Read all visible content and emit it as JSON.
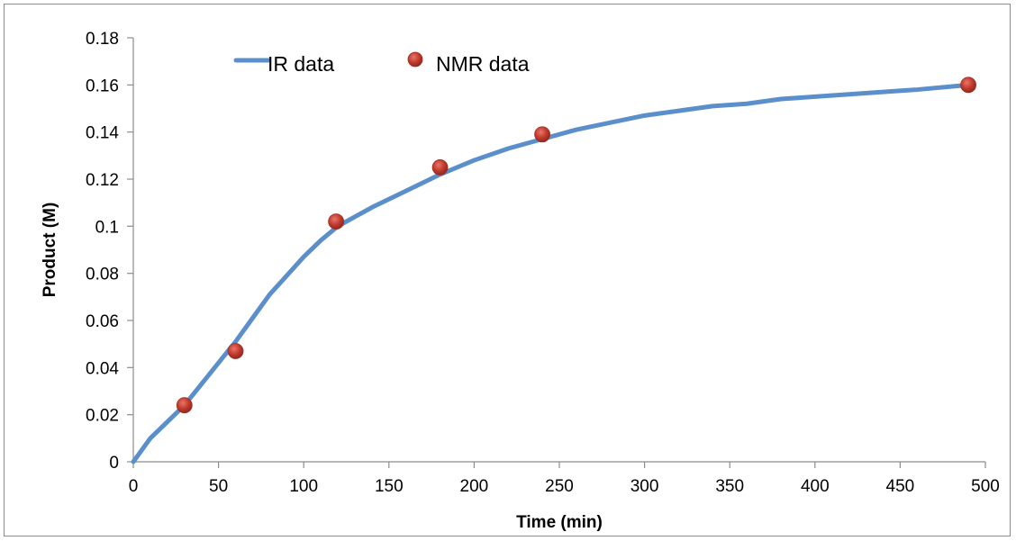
{
  "chart_data": {
    "type": "scatter",
    "title": "",
    "xlabel": "Time (min)",
    "ylabel": "Product (M)",
    "xlim": [
      0,
      500
    ],
    "ylim": [
      0,
      0.18
    ],
    "xticks": [
      "0",
      "50",
      "100",
      "150",
      "200",
      "250",
      "300",
      "350",
      "400",
      "450",
      "500"
    ],
    "yticks": [
      "0",
      "0.02",
      "0.04",
      "0.06",
      "0.08",
      "0.1",
      "0.12",
      "0.14",
      "0.16",
      "0.18"
    ],
    "grid": false,
    "legend_position": "top-left",
    "series": [
      {
        "name": "IR data",
        "type": "line",
        "color": "#5b8fcb",
        "x": [
          0,
          10,
          20,
          30,
          40,
          50,
          60,
          70,
          80,
          90,
          100,
          110,
          120,
          140,
          160,
          180,
          200,
          220,
          240,
          260,
          280,
          300,
          320,
          340,
          360,
          380,
          400,
          420,
          440,
          460,
          490
        ],
        "y": [
          0,
          0.01,
          0.017,
          0.024,
          0.033,
          0.042,
          0.051,
          0.061,
          0.071,
          0.079,
          0.087,
          0.094,
          0.1,
          0.108,
          0.115,
          0.122,
          0.128,
          0.133,
          0.137,
          0.141,
          0.144,
          0.147,
          0.149,
          0.151,
          0.152,
          0.154,
          0.155,
          0.156,
          0.157,
          0.158,
          0.16
        ]
      },
      {
        "name": "NMR data",
        "type": "scatter",
        "color": "#c0392b",
        "x": [
          30,
          60,
          119,
          180,
          240,
          490
        ],
        "y": [
          0.024,
          0.047,
          0.102,
          0.125,
          0.139,
          0.16
        ]
      }
    ]
  }
}
